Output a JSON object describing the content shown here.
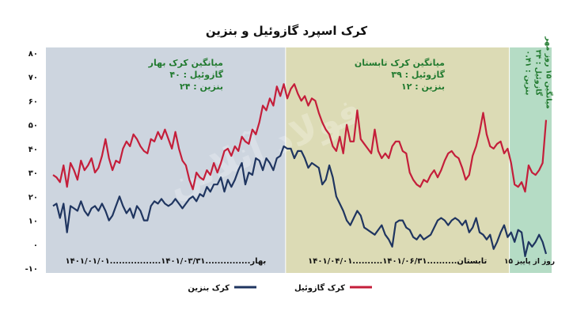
{
  "chart_data": {
    "type": "line",
    "title": "کرک اسپرد گازوئیل و بنزین",
    "ylim": [
      -10,
      80
    ],
    "y_ticks": [
      "۸۰",
      "۷۰",
      "۶۰",
      "۵۰",
      "۴۰",
      "۳۰",
      "۲۰",
      "۱۰",
      "۰",
      "-۱۰"
    ],
    "grid": false,
    "legend_position": "bottom",
    "colors": {
      "diesel": "#c41e3a",
      "gasoline": "#1f3560",
      "spring_bg": "#cdd5df",
      "summer_bg": "#dcdbb5",
      "autumn_bg": "#b5dcc5",
      "label_green": "#217a2f"
    },
    "periods": [
      {
        "name": "spring",
        "title": "میانگین کرک بهار",
        "line1": "گازوئیل : ۴۰",
        "line2": "بنزین : ۲۴",
        "x_start": 0,
        "x_end": 67,
        "axis_text": "۱۴۰۱/۰۱/۰۱.................بهار...............۱۴۰۱/۰۳/۳۱"
      },
      {
        "name": "summer",
        "title": "میانگین کرک تابستان",
        "line1": "گازوئیل : ۳۹",
        "line2": "بنزین : ۱۲",
        "x_start": 67,
        "x_end": 131,
        "axis_text": "۱۴۰۱/۰۴/۰۱..........تابستان..........۱۴۰۱/۰۶/۳۱"
      },
      {
        "name": "autumn",
        "title": "میانگین ۱۵ روز مهر",
        "line1": "گازوئیل : ۳۴",
        "line2": "بنزین : ۰.۴۱",
        "x_start": 131,
        "x_end": 142,
        "axis_text": "۱۵ روز از پاییز"
      }
    ],
    "series": [
      {
        "name": "کرک گازوئیل",
        "key": "diesel",
        "values": [
          29,
          28,
          26,
          33,
          24,
          34,
          31,
          27,
          35,
          31,
          33,
          36,
          30,
          32,
          37,
          44,
          36,
          31,
          35,
          34,
          40,
          43,
          41,
          46,
          44,
          41,
          39,
          38,
          44,
          43,
          47,
          44,
          48,
          44,
          40,
          47,
          40,
          35,
          33,
          27,
          23,
          30,
          28,
          27,
          31,
          29,
          34,
          30,
          34,
          39,
          40,
          37,
          41,
          39,
          45,
          43,
          42,
          48,
          46,
          51,
          58,
          56,
          61,
          58,
          66,
          62,
          67,
          61,
          65,
          67,
          63,
          60,
          62,
          58,
          61,
          60,
          55,
          51,
          48,
          46,
          41,
          39,
          45,
          38,
          50,
          43,
          43,
          56,
          44,
          42,
          40,
          38,
          48,
          39,
          36,
          38,
          36,
          41,
          43,
          43,
          39,
          38,
          30,
          27,
          25,
          24,
          27,
          26,
          29,
          31,
          28,
          31,
          35,
          38,
          39,
          37,
          36,
          32,
          27,
          29,
          37,
          41,
          47,
          55,
          46,
          41,
          40,
          42,
          43,
          38,
          40,
          34,
          25,
          24,
          26,
          22,
          33,
          30,
          29,
          31,
          34,
          52
        ]
      },
      {
        "name": "کرک بنزین",
        "key": "gasoline",
        "values": [
          16,
          17,
          11,
          17,
          5,
          16,
          15,
          14,
          18,
          14,
          12,
          15,
          16,
          14,
          17,
          14,
          10,
          12,
          16,
          20,
          16,
          13,
          15,
          11,
          16,
          14,
          10,
          10,
          16,
          18,
          17,
          19,
          17,
          16,
          17,
          19,
          17,
          15,
          17,
          19,
          20,
          18,
          21,
          20,
          24,
          22,
          25,
          25,
          28,
          22,
          27,
          24,
          27,
          31,
          34,
          25,
          30,
          29,
          36,
          35,
          31,
          36,
          34,
          31,
          36,
          37,
          41,
          40,
          40,
          36,
          39,
          39,
          36,
          32,
          34,
          33,
          32,
          25,
          27,
          33,
          28,
          20,
          17,
          14,
          10,
          8,
          11,
          14,
          12,
          7,
          6,
          5,
          4,
          6,
          8,
          4,
          2,
          -1,
          9,
          10,
          10,
          7,
          6,
          3,
          2,
          4,
          2,
          3,
          4,
          7,
          10,
          11,
          10,
          8,
          10,
          11,
          10,
          8,
          10,
          5,
          7,
          11,
          5,
          4,
          2,
          4,
          -2,
          1,
          5,
          8,
          3,
          5,
          1,
          6,
          5,
          -5,
          1,
          -1,
          1,
          4,
          1,
          -4
        ]
      }
    ],
    "watermark": "فولاد آنلاین"
  }
}
